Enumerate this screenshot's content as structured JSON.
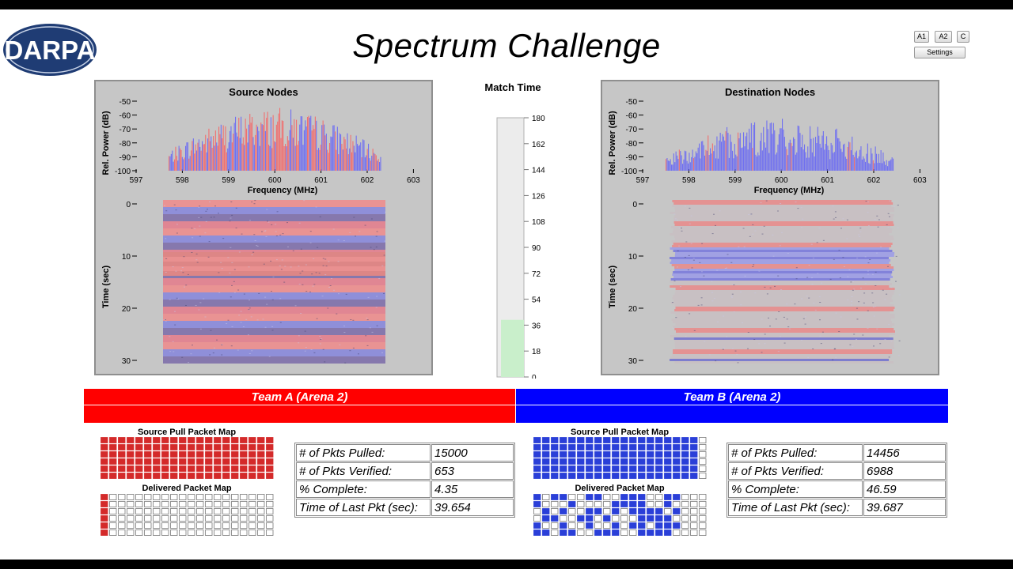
{
  "header": {
    "logo_text": "DARPA",
    "title": "Spectrum Challenge",
    "buttons": {
      "a1": "A1",
      "a2": "A2",
      "c": "C",
      "settings": "Settings"
    }
  },
  "panels": {
    "source": {
      "title": "Source Nodes"
    },
    "destination": {
      "title": "Destination Nodes"
    }
  },
  "spectrum_axes": {
    "ylabel": "Rel. Power (dB)",
    "yticks": [
      "-50",
      "-60",
      "-70",
      "-80",
      "-90",
      "-100"
    ],
    "xlabel": "Frequency (MHz)",
    "xticks": [
      "597",
      "598",
      "599",
      "600",
      "601",
      "602",
      "603"
    ],
    "time_label": "Time (sec)",
    "time_ticks": [
      "0",
      "10",
      "20",
      "30"
    ]
  },
  "match_time": {
    "title": "Match Time",
    "ticks": [
      "180",
      "162",
      "144",
      "126",
      "108",
      "90",
      "72",
      "54",
      "36",
      "18",
      "0"
    ],
    "value": 39.7,
    "max": 180
  },
  "teams": {
    "a": {
      "name": "Team A (Arena 2)",
      "color": "#ff0000",
      "source_map_title": "Source Pull Packet Map",
      "delivered_map_title": "Delivered Packet Map",
      "stats": [
        {
          "label": "# of Pkts Pulled:",
          "value": "15000"
        },
        {
          "label": "# of Pkts Verified:",
          "value": "653"
        },
        {
          "label": "% Complete:",
          "value": "4.35"
        },
        {
          "label": "Time of Last Pkt (sec):",
          "value": "39.654"
        }
      ],
      "source_fill": 1.0,
      "delivered_fill": 0.0435
    },
    "b": {
      "name": "Team B (Arena 2)",
      "color": "#0000ff",
      "source_map_title": "Source Pull Packet Map",
      "delivered_map_title": "Delivered Packet Map",
      "stats": [
        {
          "label": "# of Pkts Pulled:",
          "value": "14456"
        },
        {
          "label": "# of Pkts Verified:",
          "value": "6988"
        },
        {
          "label": "% Complete:",
          "value": "46.59"
        },
        {
          "label": "Time of Last Pkt (sec):",
          "value": "39.687"
        }
      ],
      "source_fill": 0.96,
      "delivered_fill": 0.4659
    }
  },
  "colors": {
    "team_a": "#ff0000",
    "team_b": "#0000ff",
    "packet_a": "#d42a2a",
    "packet_b": "#2a3fd8",
    "spectrum_red": "#f07070",
    "spectrum_blue": "#7070f0",
    "panel_bg": "#c6c6c6",
    "match_fill": "#c9efcb"
  }
}
